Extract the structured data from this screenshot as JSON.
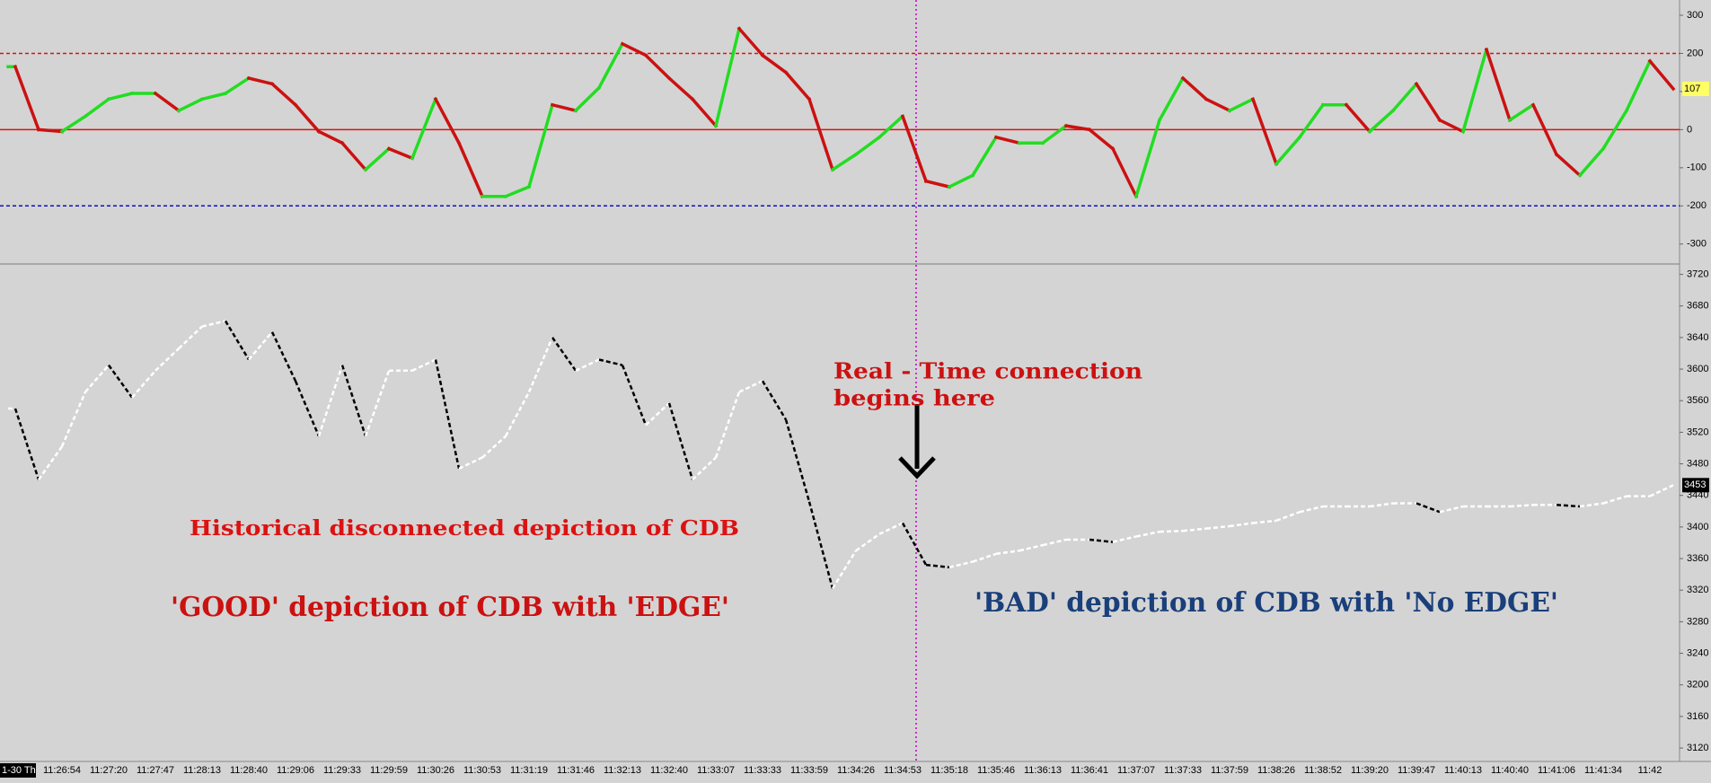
{
  "chart_data": [
    {
      "type": "oscillator",
      "values": [
        165,
        0,
        -5,
        35,
        80,
        95,
        95,
        50,
        80,
        95,
        135,
        120,
        65,
        -5,
        -35,
        -105,
        -50,
        -75,
        80,
        -35,
        -175,
        -175,
        -150,
        65,
        50,
        110,
        225,
        195,
        135,
        80,
        10,
        265,
        195,
        150,
        80,
        -105,
        -65,
        -20,
        35,
        -135,
        -150,
        -120,
        -20,
        -35,
        -35,
        10,
        0,
        -50,
        -175,
        25,
        135,
        80,
        50,
        80,
        -90,
        -20,
        65,
        65,
        -5,
        50,
        120,
        25,
        -5,
        210,
        25,
        65,
        -65,
        -120,
        -50,
        50,
        180,
        107
      ],
      "up_color": "#22dd22",
      "down_color": "#cc1111",
      "ylim": [
        -350,
        340
      ],
      "yticks": [
        -300,
        -200,
        -100,
        0,
        100,
        200,
        300
      ],
      "hlines": [
        {
          "value": 200,
          "color": "#e01010",
          "dash": true
        },
        {
          "value": 0,
          "color": "#e01010",
          "dash": false
        },
        {
          "value": -200,
          "color": "#1010c0",
          "dash": true
        }
      ]
    },
    {
      "type": "line",
      "categories": [
        "1-30 Th",
        null,
        "11:26:54",
        null,
        "11:27:20",
        null,
        "11:27:47",
        null,
        "11:28:13",
        null,
        "11:28:40",
        null,
        "11:29:06",
        null,
        "11:29:33",
        null,
        "11:29:59",
        null,
        "11:30:26",
        null,
        "11:30:53",
        null,
        "11:31:19",
        null,
        "11:31:46",
        null,
        "11:32:13",
        null,
        "11:32:40",
        null,
        "11:33:07",
        null,
        "11:33:33",
        null,
        "11:33:59",
        null,
        "11:34:26",
        null,
        "11:34:53",
        null,
        "11:35:18",
        null,
        "11:35:46",
        null,
        "11:36:13",
        null,
        "11:36:41",
        null,
        "11:37:07",
        null,
        "11:37:33",
        null,
        "11:37:59",
        null,
        "11:38:26",
        null,
        "11:38:52",
        null,
        "11:39:20",
        null,
        "11:39:47",
        null,
        "11:40:13",
        null,
        "11:40:40",
        null,
        "11:41:06",
        null,
        "11:41:34",
        null,
        "11:42",
        null
      ],
      "values": [
        3550,
        3460,
        3502,
        3571,
        3605,
        3564,
        3598,
        3626,
        3654,
        3661,
        3612,
        3647,
        3585,
        3515,
        3605,
        3515,
        3598,
        3598,
        3612,
        3474,
        3488,
        3515,
        3571,
        3640,
        3598,
        3612,
        3605,
        3529,
        3557,
        3460,
        3488,
        3571,
        3585,
        3536,
        3432,
        3322,
        3370,
        3391,
        3405,
        3352,
        3349,
        3356,
        3366,
        3370,
        3377,
        3384,
        3384,
        3381,
        3388,
        3394,
        3395,
        3398,
        3401,
        3405,
        3408,
        3419,
        3426,
        3426,
        3426,
        3430,
        3430,
        3419,
        3426,
        3426,
        3426,
        3428,
        3428,
        3426,
        3430,
        3439,
        3439,
        3453
      ],
      "up_color": "#ffffff",
      "down_color": "#000000",
      "ylim": [
        3103,
        3732
      ],
      "yticks": [
        3120,
        3160,
        3200,
        3240,
        3280,
        3320,
        3360,
        3400,
        3440,
        3480,
        3520,
        3560,
        3600,
        3640,
        3680,
        3720
      ],
      "annotations": [
        "Real - Time connection",
        "begins here",
        "Historical disconnected depiction of CDB",
        "'GOOD' depiction of CDB with 'EDGE'",
        "'BAD' depiction of CDB with 'No EDGE'"
      ]
    }
  ]
}
